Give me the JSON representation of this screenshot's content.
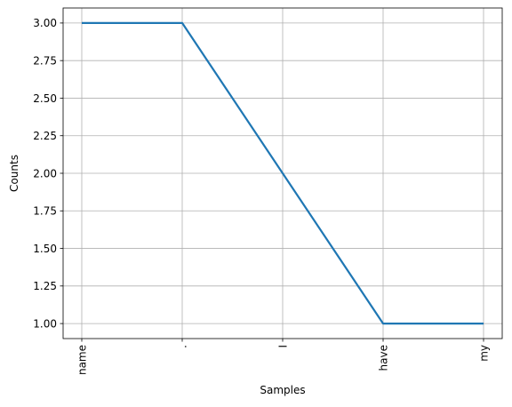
{
  "chart_data": {
    "type": "line",
    "categories": [
      "name",
      ".",
      "I",
      "have",
      "my"
    ],
    "series": [
      {
        "values": [
          3,
          3,
          2,
          1,
          1
        ],
        "color": "#1f77b4"
      }
    ],
    "xlabel": "Samples",
    "ylabel": "Counts",
    "ylim": [
      0.9,
      3.1
    ],
    "yticks": [
      "1.00",
      "1.25",
      "1.50",
      "1.75",
      "2.00",
      "2.25",
      "2.50",
      "2.75",
      "3.00"
    ],
    "grid": true,
    "xtick_rotation": "vertical"
  }
}
